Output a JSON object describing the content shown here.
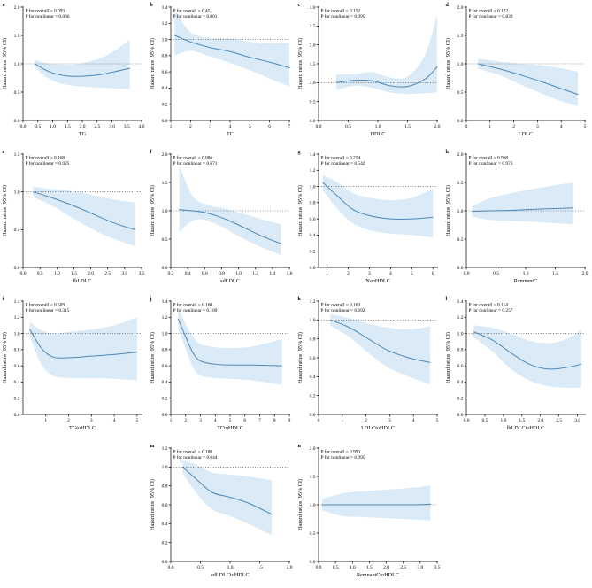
{
  "figure": {
    "title": "Restricted cubic spline hazard ratio panels",
    "line_color": "#4f87b5",
    "band_color": "#daeaf6",
    "axis_color": "#000000",
    "ref_line_color": "#333333",
    "background": "#ffffff"
  },
  "chart_data": [
    {
      "type": "line",
      "letter": "a",
      "xlabel": "TG",
      "ylabel": "Hazard ratios (95% CI)",
      "p_overall": "P for overall = 0.093",
      "p_nonlinear": "P for nonlinear = 0.066",
      "col": 1,
      "row": 1,
      "ylim": [
        0,
        2.0
      ],
      "yticks": [
        "0.0",
        "0.5",
        "1.0",
        "1.5",
        "2.0"
      ],
      "xlim": [
        0,
        4.0
      ],
      "xticks": [
        "0.0",
        "0.5",
        "1.0",
        "1.5",
        "2.0",
        "2.5",
        "3.0",
        "3.5",
        "4.0"
      ],
      "x": [
        0.4,
        0.8,
        1.2,
        1.6,
        2.0,
        2.5,
        3.0,
        3.6
      ],
      "y": [
        1.0,
        0.88,
        0.81,
        0.78,
        0.78,
        0.8,
        0.85,
        0.92
      ],
      "lower": [
        0.93,
        0.76,
        0.66,
        0.62,
        0.6,
        0.58,
        0.57,
        0.55
      ],
      "upper": [
        1.07,
        1.01,
        0.99,
        0.98,
        1.01,
        1.08,
        1.2,
        1.42
      ]
    },
    {
      "type": "line",
      "letter": "b",
      "xlabel": "TC",
      "ylabel": "Hazard ratios (95% CI)",
      "p_overall": "P for overall = 0.451",
      "p_nonlinear": "P for nonlinear = 0.801",
      "col": 2,
      "row": 1,
      "ylim": [
        0,
        1.4
      ],
      "yticks": [
        "0.0",
        "0.2",
        "0.4",
        "0.6",
        "0.8",
        "1.0",
        "1.2",
        "1.4"
      ],
      "xlim": [
        1,
        7
      ],
      "xticks": [
        "1",
        "2",
        "3",
        "4",
        "5",
        "6",
        "7"
      ],
      "x": [
        1.2,
        2,
        3,
        4,
        5,
        6,
        7
      ],
      "y": [
        1.05,
        0.97,
        0.9,
        0.85,
        0.78,
        0.72,
        0.65
      ],
      "lower": [
        0.8,
        0.86,
        0.79,
        0.71,
        0.62,
        0.52,
        0.42
      ],
      "upper": [
        1.36,
        1.09,
        1.02,
        1.01,
        0.97,
        0.95,
        0.96
      ]
    },
    {
      "type": "line",
      "letter": "c",
      "xlabel": "HDLC",
      "ylabel": "Hazard ratios (95% CI)",
      "p_overall": "P for overall = 0.152",
      "p_nonlinear": "P for nonlinear = 0.095",
      "col": 3,
      "row": 1,
      "ylim": [
        0,
        3.0
      ],
      "yticks": [
        "0.0",
        "0.5",
        "1.0",
        "1.5",
        "2.0",
        "2.5",
        "3.0"
      ],
      "xlim": [
        0,
        2.0
      ],
      "xticks": [
        "0.0",
        "0.5",
        "1.0",
        "1.5",
        "2.0"
      ],
      "x": [
        0.3,
        0.6,
        0.9,
        1.2,
        1.5,
        1.8,
        2.0
      ],
      "y": [
        1.0,
        1.06,
        1.05,
        0.92,
        0.9,
        1.1,
        1.42
      ],
      "lower": [
        0.8,
        0.92,
        0.86,
        0.74,
        0.7,
        0.72,
        0.74
      ],
      "upper": [
        1.22,
        1.22,
        1.28,
        1.14,
        1.16,
        1.75,
        2.8
      ]
    },
    {
      "type": "line",
      "letter": "d",
      "xlabel": "LDLC",
      "ylabel": "Hazard ratios (95% CI)",
      "p_overall": "P for overall = 0.122",
      "p_nonlinear": "P for nonlinear = 0.839",
      "col": 4,
      "row": 1,
      "ylim": [
        0,
        2.0
      ],
      "yticks": [
        "0.0",
        "0.5",
        "1.0",
        "1.5",
        "2.0"
      ],
      "xlim": [
        0,
        5
      ],
      "xticks": [
        "0",
        "1",
        "2",
        "3",
        "4",
        "5"
      ],
      "x": [
        0.5,
        1.4,
        2.3,
        3.2,
        4.0,
        4.7
      ],
      "y": [
        1.0,
        0.91,
        0.8,
        0.68,
        0.56,
        0.46
      ],
      "lower": [
        0.91,
        0.8,
        0.63,
        0.47,
        0.34,
        0.25
      ],
      "upper": [
        1.09,
        1.04,
        1.0,
        0.97,
        0.92,
        0.86
      ]
    },
    {
      "type": "line",
      "letter": "e",
      "xlabel": "lbLDLC",
      "ylabel": "Hazard ratios (95% CI)",
      "p_overall": "P for overall = 0.168",
      "p_nonlinear": "P for nonlinear = 0.925",
      "col": 1,
      "row": 2,
      "ylim": [
        0,
        1.5
      ],
      "yticks": [
        "0.0",
        "0.5",
        "1.0",
        "1.5"
      ],
      "xlim": [
        0,
        3.5
      ],
      "xticks": [
        "0.0",
        "0.5",
        "1.0",
        "1.5",
        "2.0",
        "2.5",
        "3.0",
        "3.5"
      ],
      "x": [
        0.3,
        0.8,
        1.3,
        1.8,
        2.3,
        2.8,
        3.3
      ],
      "y": [
        1.0,
        0.93,
        0.85,
        0.76,
        0.66,
        0.57,
        0.5
      ],
      "lower": [
        0.93,
        0.83,
        0.7,
        0.57,
        0.45,
        0.36,
        0.28
      ],
      "upper": [
        1.07,
        1.04,
        1.02,
        0.98,
        0.93,
        0.89,
        0.86
      ]
    },
    {
      "type": "line",
      "letter": "f",
      "xlabel": "sdLDLC",
      "ylabel": "Hazard ratios (95% CI)",
      "p_overall": "P for overall = 0.086",
      "p_nonlinear": "P for nonlinear = 0.671",
      "col": 2,
      "row": 2,
      "ylim": [
        0,
        2.0
      ],
      "yticks": [
        "0.0",
        "0.5",
        "1.0",
        "1.5",
        "2.0"
      ],
      "xlim": [
        0.2,
        1.6
      ],
      "xticks": [
        "0.2",
        "0.4",
        "0.6",
        "0.8",
        "1.0",
        "1.2",
        "1.4",
        "1.6"
      ],
      "x": [
        0.3,
        0.45,
        0.6,
        0.8,
        1.0,
        1.25,
        1.5
      ],
      "y": [
        1.02,
        1.0,
        0.97,
        0.88,
        0.75,
        0.57,
        0.42
      ],
      "lower": [
        0.62,
        0.82,
        0.84,
        0.72,
        0.55,
        0.37,
        0.22
      ],
      "upper": [
        1.8,
        1.28,
        1.12,
        1.05,
        0.97,
        0.86,
        0.76
      ]
    },
    {
      "type": "line",
      "letter": "g",
      "xlabel": "NonHDLC",
      "ylabel": "Hazard ratios (95% CI)",
      "p_overall": "P for overall = 0.254",
      "p_nonlinear": "P for nonlinear = 0.542",
      "col": 3,
      "row": 2,
      "ylim": [
        0,
        1.4
      ],
      "yticks": [
        "0.0",
        "0.2",
        "0.4",
        "0.6",
        "0.8",
        "1.0",
        "1.2",
        "1.4"
      ],
      "xlim": [
        0.6,
        6.2
      ],
      "xticks": [
        "1",
        "2",
        "3",
        "4",
        "5",
        "6"
      ],
      "x": [
        0.8,
        1.5,
        2.2,
        3.0,
        4.0,
        5.0,
        6.0
      ],
      "y": [
        1.05,
        0.88,
        0.72,
        0.64,
        0.6,
        0.6,
        0.62
      ],
      "lower": [
        0.96,
        0.72,
        0.55,
        0.46,
        0.42,
        0.4,
        0.37
      ],
      "upper": [
        1.14,
        1.05,
        0.92,
        0.86,
        0.83,
        0.86,
        0.97
      ]
    },
    {
      "type": "line",
      "letter": "h",
      "xlabel": "RemnantC",
      "ylabel": "Hazard ratios (95% CI)",
      "p_overall": "P for overall = 0.968",
      "p_nonlinear": "P for nonlinear = 0.973",
      "col": 4,
      "row": 2,
      "ylim": [
        0,
        2.0
      ],
      "yticks": [
        "0.0",
        "0.5",
        "1.0",
        "1.5",
        "2.0"
      ],
      "xlim": [
        0,
        2.0
      ],
      "xticks": [
        "0.0",
        "0.5",
        "1.0",
        "1.5",
        "2.0"
      ],
      "x": [
        0.1,
        0.4,
        0.8,
        1.2,
        1.5,
        1.8
      ],
      "y": [
        0.99,
        1.0,
        1.01,
        1.03,
        1.04,
        1.05
      ],
      "lower": [
        0.9,
        0.84,
        0.82,
        0.8,
        0.78,
        0.76
      ],
      "upper": [
        1.08,
        1.22,
        1.32,
        1.4,
        1.45,
        1.5
      ]
    },
    {
      "type": "line",
      "letter": "i",
      "xlabel": "TGtoHDLC",
      "ylabel": "Hazard ratios (95% CI)",
      "p_overall": "P for overall = 0.509",
      "p_nonlinear": "P for nonlinear = 0.315",
      "col": 1,
      "row": 3,
      "ylim": [
        0,
        1.4
      ],
      "yticks": [
        "0.0",
        "0.2",
        "0.4",
        "0.6",
        "0.8",
        "1.0",
        "1.2",
        "1.4"
      ],
      "xlim": [
        0,
        5.2
      ],
      "xticks": [
        "1",
        "2",
        "3",
        "4",
        "5"
      ],
      "x": [
        0.3,
        0.8,
        1.3,
        2.0,
        3.0,
        4.0,
        5.0
      ],
      "y": [
        1.05,
        0.82,
        0.71,
        0.7,
        0.72,
        0.74,
        0.77
      ],
      "lower": [
        0.96,
        0.62,
        0.48,
        0.45,
        0.45,
        0.44,
        0.42
      ],
      "upper": [
        1.14,
        1.04,
        1.0,
        1.02,
        1.05,
        1.1,
        1.2
      ]
    },
    {
      "type": "line",
      "letter": "j",
      "xlabel": "TCtoHDLC",
      "ylabel": "Hazard ratios (95% CI)",
      "p_overall": "P for overall = 0.160",
      "p_nonlinear": "P for nonlinear = 0.109",
      "col": 2,
      "row": 3,
      "ylim": [
        0,
        1.4
      ],
      "yticks": [
        "0.0",
        "0.2",
        "0.4",
        "0.6",
        "0.8",
        "1.0",
        "1.2",
        "1.4"
      ],
      "xlim": [
        1,
        9
      ],
      "xticks": [
        "1",
        "2",
        "3",
        "4",
        "5",
        "6",
        "7",
        "8",
        "9"
      ],
      "x": [
        1.5,
        2.0,
        2.5,
        3.0,
        4.0,
        5.0,
        6.5,
        8.5
      ],
      "y": [
        1.18,
        0.96,
        0.76,
        0.66,
        0.62,
        0.61,
        0.61,
        0.6
      ],
      "lower": [
        1.06,
        0.81,
        0.58,
        0.48,
        0.45,
        0.44,
        0.42,
        0.37
      ],
      "upper": [
        1.31,
        1.12,
        0.96,
        0.87,
        0.83,
        0.82,
        0.84,
        0.93
      ]
    },
    {
      "type": "line",
      "letter": "k",
      "xlabel": "LDLCtoHDLC",
      "ylabel": "Hazard ratios (95% CI)",
      "p_overall": "P for overall = 0.160",
      "p_nonlinear": "P for nonlinear = 0.692",
      "col": 3,
      "row": 3,
      "ylim": [
        0,
        1.2
      ],
      "yticks": [
        "0.0",
        "0.2",
        "0.4",
        "0.6",
        "0.8",
        "1.0",
        "1.2"
      ],
      "xlim": [
        0,
        5
      ],
      "xticks": [
        "0",
        "1",
        "2",
        "3",
        "4",
        "5"
      ],
      "x": [
        0.5,
        1.3,
        2.1,
        2.9,
        3.8,
        4.7
      ],
      "y": [
        1.0,
        0.92,
        0.8,
        0.68,
        0.6,
        0.55
      ],
      "lower": [
        0.94,
        0.82,
        0.65,
        0.5,
        0.4,
        0.32
      ],
      "upper": [
        1.06,
        1.02,
        0.96,
        0.92,
        0.9,
        0.93
      ]
    },
    {
      "type": "line",
      "letter": "l",
      "xlabel": "lbLDLCtoHDLC",
      "ylabel": "Hazard ratios (95% CI)",
      "p_overall": "P for overall = 0.114",
      "p_nonlinear": "P for nonlinear = 0.257",
      "col": 4,
      "row": 3,
      "ylim": [
        0,
        1.4
      ],
      "yticks": [
        "0.0",
        "0.2",
        "0.4",
        "0.6",
        "0.8",
        "1.0",
        "1.2",
        "1.4"
      ],
      "xlim": [
        0,
        3.2
      ],
      "xticks": [
        "0.0",
        "0.5",
        "1.0",
        "1.5",
        "2.0",
        "2.5",
        "3.0"
      ],
      "x": [
        0.2,
        0.7,
        1.2,
        1.7,
        2.2,
        2.7,
        3.1
      ],
      "y": [
        1.02,
        0.92,
        0.76,
        0.62,
        0.56,
        0.58,
        0.62
      ],
      "lower": [
        0.95,
        0.78,
        0.56,
        0.42,
        0.35,
        0.33,
        0.33
      ],
      "upper": [
        1.1,
        1.07,
        1.0,
        0.91,
        0.88,
        0.93,
        1.05
      ]
    },
    {
      "type": "line",
      "letter": "m",
      "xlabel": "sdLDLCtoHDLC",
      "ylabel": "Hazard ratios (95% CI)",
      "p_overall": "P for overall = 0.180",
      "p_nonlinear": "P for nonlinear = 0.644",
      "col": 2,
      "row": 4,
      "ylim": [
        0,
        1.2
      ],
      "yticks": [
        "0.0",
        "0.2",
        "0.4",
        "0.6",
        "0.8",
        "1.0",
        "1.2"
      ],
      "xlim": [
        0,
        2.0
      ],
      "xticks": [
        "0.0",
        "0.5",
        "1.0",
        "1.5",
        "2.0"
      ],
      "x": [
        0.2,
        0.45,
        0.7,
        1.0,
        1.3,
        1.7
      ],
      "y": [
        1.0,
        0.86,
        0.73,
        0.68,
        0.62,
        0.5
      ],
      "lower": [
        0.93,
        0.71,
        0.55,
        0.48,
        0.4,
        0.28
      ],
      "upper": [
        1.07,
        1.02,
        0.94,
        0.92,
        0.9,
        0.86
      ]
    },
    {
      "type": "line",
      "letter": "n",
      "xlabel": "RemnantCtoHDLC",
      "ylabel": "Hazard ratios (95% CI)",
      "p_overall": "P for overall = 0.993",
      "p_nonlinear": "P for nonlinear = 0.995",
      "col": 3,
      "row": 4,
      "ylim": [
        0,
        2.0
      ],
      "yticks": [
        "0.0",
        "0.5",
        "1.0",
        "1.5",
        "2.0"
      ],
      "xlim": [
        0,
        3.5
      ],
      "xticks": [
        "0.0",
        "0.5",
        "1.0",
        "1.5",
        "2.0",
        "2.5",
        "3.0",
        "3.5"
      ],
      "x": [
        0.1,
        0.7,
        1.4,
        2.1,
        2.8,
        3.3
      ],
      "y": [
        1.0,
        1.0,
        1.0,
        1.0,
        1.0,
        1.01
      ],
      "lower": [
        0.9,
        0.8,
        0.78,
        0.76,
        0.74,
        0.72
      ],
      "upper": [
        1.1,
        1.2,
        1.24,
        1.27,
        1.3,
        1.34
      ]
    }
  ]
}
